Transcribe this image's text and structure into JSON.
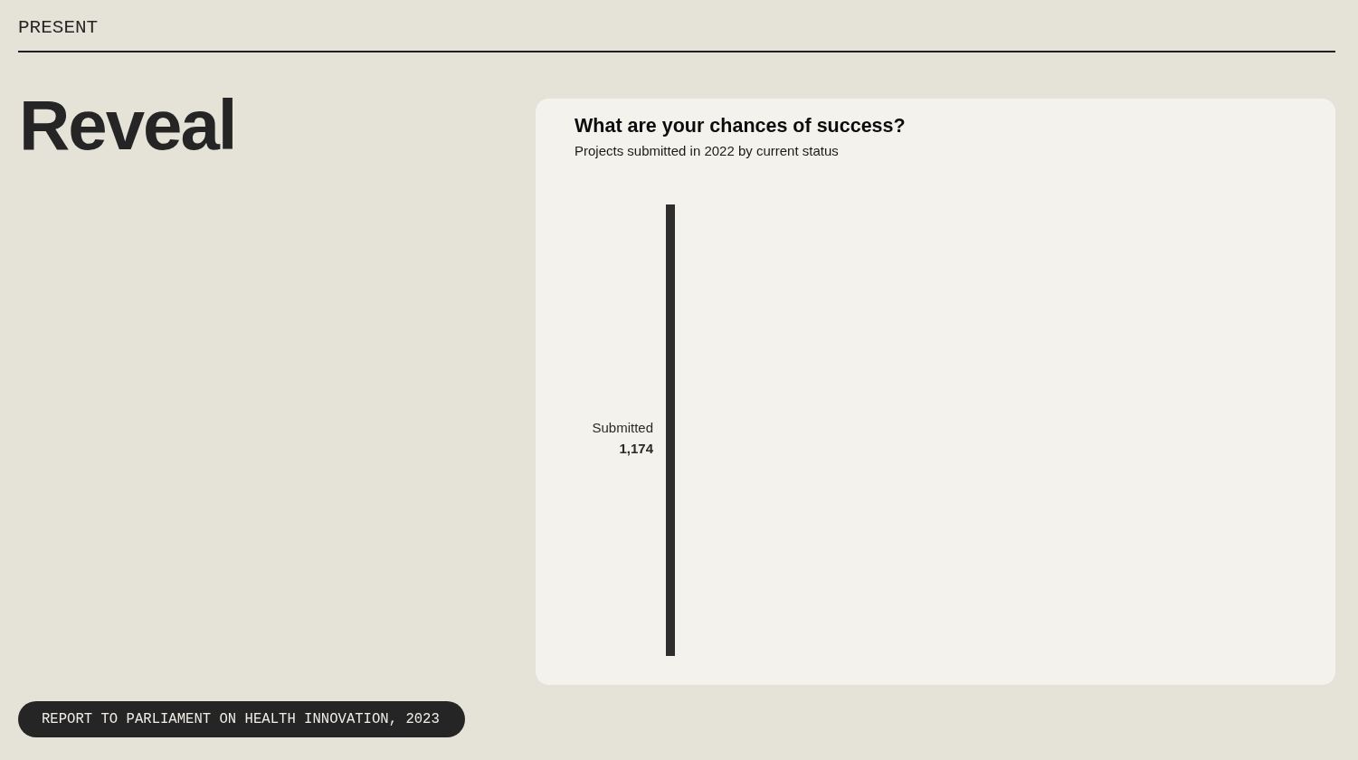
{
  "chart_data": {
    "type": "other",
    "title": "What are your chances of success?",
    "subtitle": "Projects submitted in 2022 by current status",
    "categories": [
      "Submitted"
    ],
    "values": [
      1174
    ],
    "value_labels": [
      "1,174"
    ],
    "color": "#2e2e2e",
    "annotations": [
      "PRESENT",
      "Reveal",
      "REPORT TO PARLIAMENT ON HEALTH INNOVATION, 2023"
    ]
  }
}
